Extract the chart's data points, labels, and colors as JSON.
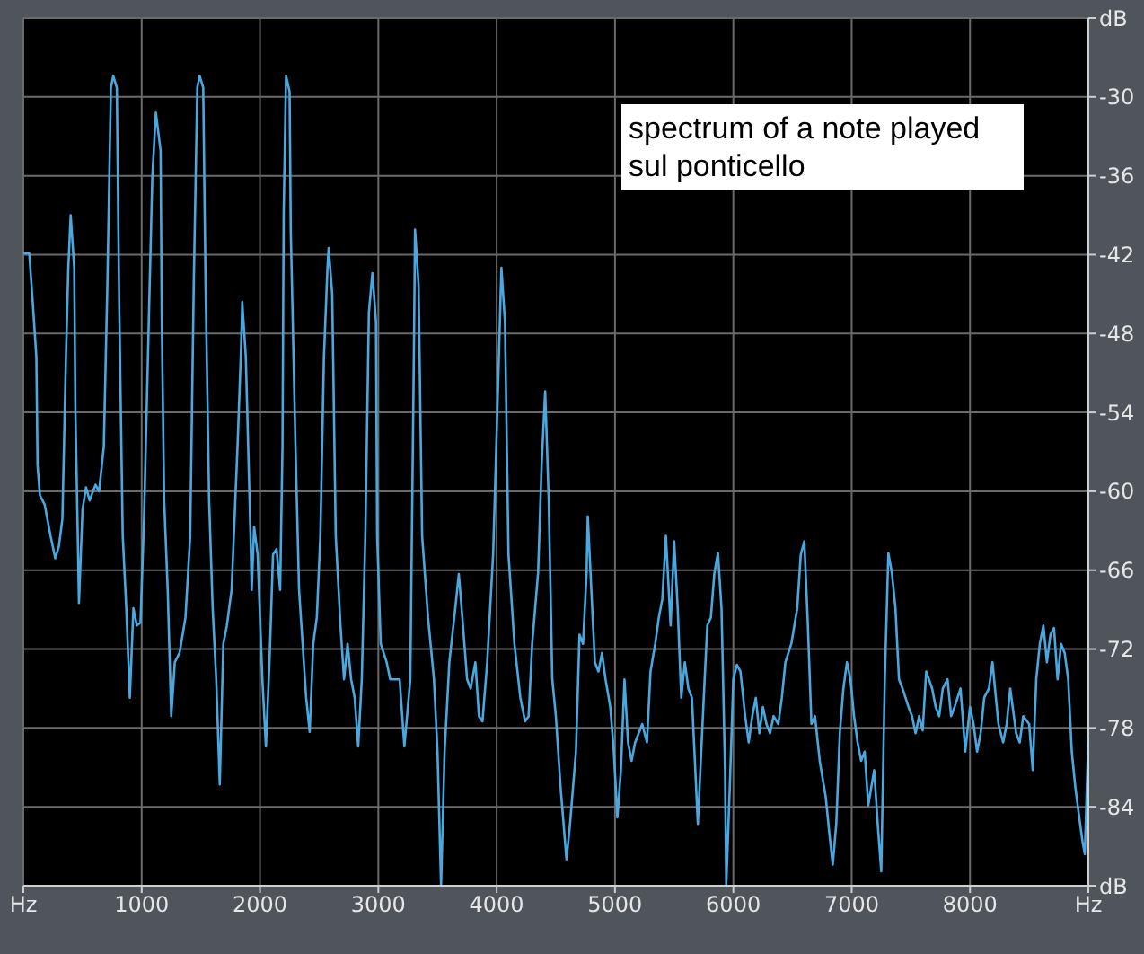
{
  "chart_data": {
    "type": "line",
    "annotations": [
      "spectrum of a note played sul ponticello"
    ],
    "xlim": [
      0,
      9000
    ],
    "xticks": [
      {
        "value": 0,
        "label": "Hz"
      },
      1000,
      2000,
      3000,
      4000,
      5000,
      6000,
      7000,
      8000,
      {
        "value": 9000,
        "label": "Hz"
      }
    ],
    "ylim": [
      -90,
      -24
    ],
    "yticks": [
      {
        "value": -90,
        "label": "dB"
      },
      -84,
      -78,
      -72,
      -66,
      -60,
      -54,
      -48,
      -42,
      -36,
      -30,
      {
        "value": -24,
        "label": "dB"
      }
    ],
    "grid": true,
    "x": [
      0,
      50,
      80,
      110,
      120,
      140,
      180,
      230,
      270,
      300,
      330,
      360,
      380,
      400,
      430,
      440,
      460,
      470,
      500,
      530,
      560,
      610,
      640,
      680,
      710,
      740,
      760,
      790,
      810,
      840,
      870,
      900,
      930,
      960,
      990,
      1020,
      1060,
      1090,
      1120,
      1160,
      1170,
      1190,
      1220,
      1250,
      1280,
      1320,
      1370,
      1410,
      1440,
      1470,
      1490,
      1520,
      1540,
      1570,
      1600,
      1630,
      1660,
      1690,
      1720,
      1760,
      1810,
      1840,
      1850,
      1880,
      1920,
      1930,
      1950,
      1980,
      2020,
      2050,
      2080,
      2110,
      2140,
      2170,
      2190,
      2200,
      2220,
      2250,
      2260,
      2300,
      2330,
      2360,
      2390,
      2420,
      2450,
      2480,
      2510,
      2540,
      2570,
      2580,
      2610,
      2640,
      2680,
      2710,
      2740,
      2770,
      2800,
      2830,
      2860,
      2890,
      2920,
      2950,
      2980,
      2990,
      3020,
      3070,
      3100,
      3130,
      3180,
      3220,
      3270,
      3300,
      3310,
      3340,
      3370,
      3420,
      3470,
      3500,
      3530,
      3560,
      3600,
      3650,
      3680,
      3710,
      3750,
      3780,
      3820,
      3850,
      3880,
      3920,
      3970,
      4010,
      4040,
      4070,
      4100,
      4150,
      4200,
      4240,
      4270,
      4300,
      4350,
      4380,
      4410,
      4440,
      4470,
      4500,
      4540,
      4590,
      4620,
      4670,
      4700,
      4730,
      4760,
      4770,
      4800,
      4830,
      4860,
      4890,
      4920,
      4960,
      4990,
      5020,
      5050,
      5080,
      5110,
      5140,
      5170,
      5200,
      5230,
      5270,
      5300,
      5340,
      5370,
      5400,
      5430,
      5470,
      5500,
      5530,
      5560,
      5590,
      5620,
      5650,
      5700,
      5750,
      5780,
      5810,
      5840,
      5870,
      5900,
      5930,
      5940,
      5970,
      6000,
      6030,
      6060,
      6100,
      6130,
      6160,
      6190,
      6220,
      6250,
      6280,
      6310,
      6340,
      6380,
      6410,
      6440,
      6490,
      6540,
      6570,
      6600,
      6630,
      6660,
      6690,
      6730,
      6780,
      6810,
      6840,
      6870,
      6900,
      6930,
      6960,
      6990,
      7020,
      7050,
      7080,
      7110,
      7140,
      7190,
      7220,
      7250,
      7280,
      7310,
      7340,
      7370,
      7400,
      7430,
      7480,
      7510,
      7540,
      7570,
      7600,
      7630,
      7680,
      7710,
      7740,
      7770,
      7810,
      7840,
      7870,
      7920,
      7960,
      8000,
      8030,
      8060,
      8090,
      8120,
      8160,
      8190,
      8240,
      8280,
      8310,
      8340,
      8390,
      8420,
      8450,
      8500,
      8530,
      8560,
      8590,
      8620,
      8650,
      8680,
      8710,
      8740,
      8770,
      8800,
      8830,
      8860,
      8890,
      8920,
      8950,
      8970,
      9000
    ],
    "series": [
      {
        "color": "#4aa8e0",
        "values": [
          -41.9,
          -41.9,
          -45.7,
          -49.8,
          -58.0,
          -60.3,
          -61.0,
          -63.4,
          -65.1,
          -64.2,
          -62.1,
          -49.8,
          -43.0,
          -39.0,
          -43.0,
          -53.9,
          -63.4,
          -68.5,
          -61.4,
          -59.7,
          -60.7,
          -59.5,
          -60.0,
          -56.6,
          -44.3,
          -29.3,
          -28.4,
          -29.3,
          -45.7,
          -63.4,
          -68.9,
          -75.7,
          -68.9,
          -70.2,
          -70.0,
          -62.1,
          -47.1,
          -36.1,
          -31.2,
          -34.1,
          -47.1,
          -60.7,
          -67.5,
          -77.1,
          -73.0,
          -72.3,
          -69.6,
          -63.4,
          -44.3,
          -29.3,
          -28.4,
          -29.3,
          -44.3,
          -60.7,
          -68.9,
          -74.3,
          -82.3,
          -71.6,
          -70.2,
          -67.5,
          -56.6,
          -49.1,
          -45.6,
          -49.8,
          -63.4,
          -67.5,
          -62.7,
          -64.8,
          -74.3,
          -79.4,
          -73.0,
          -64.8,
          -64.4,
          -67.5,
          -56.6,
          -38.9,
          -28.4,
          -29.6,
          -40.2,
          -56.6,
          -67.5,
          -71.6,
          -75.7,
          -78.3,
          -71.6,
          -69.6,
          -63.4,
          -49.8,
          -43.0,
          -41.5,
          -45.0,
          -63.4,
          -70.2,
          -74.3,
          -71.6,
          -74.3,
          -75.7,
          -79.4,
          -74.3,
          -63.4,
          -46.4,
          -43.4,
          -47.1,
          -63.4,
          -71.6,
          -73.0,
          -74.3,
          -74.3,
          -74.3,
          -79.4,
          -74.3,
          -49.8,
          -40.1,
          -44.3,
          -63.4,
          -69.6,
          -74.3,
          -79.8,
          -90,
          -79.8,
          -73.0,
          -68.9,
          -66.3,
          -69.6,
          -74.3,
          -75.0,
          -73.0,
          -77.1,
          -77.5,
          -73.0,
          -64.8,
          -52.5,
          -43.0,
          -47.1,
          -64.8,
          -71.6,
          -75.7,
          -77.5,
          -77.1,
          -71.6,
          -66.2,
          -58.0,
          -52.4,
          -60.7,
          -74.3,
          -77.1,
          -82.5,
          -88.0,
          -85.3,
          -79.8,
          -70.9,
          -71.6,
          -66.2,
          -61.9,
          -67.5,
          -73.0,
          -73.7,
          -72.3,
          -74.3,
          -76.4,
          -79.8,
          -84.8,
          -81.2,
          -74.3,
          -79.1,
          -80.5,
          -79.1,
          -78.4,
          -77.7,
          -79.1,
          -73.7,
          -71.6,
          -69.6,
          -68.2,
          -63.4,
          -70.2,
          -63.8,
          -68.9,
          -75.7,
          -73.0,
          -75.0,
          -75.7,
          -85.3,
          -75.7,
          -70.2,
          -69.6,
          -66.2,
          -64.7,
          -68.9,
          -81.2,
          -90,
          -82.5,
          -74.3,
          -73.2,
          -73.7,
          -77.1,
          -79.1,
          -77.1,
          -75.7,
          -78.4,
          -76.4,
          -77.7,
          -78.4,
          -77.1,
          -77.7,
          -75.7,
          -73.0,
          -71.6,
          -68.9,
          -64.8,
          -63.8,
          -70.2,
          -77.7,
          -77.1,
          -80.5,
          -83.2,
          -85.9,
          -88.4,
          -85.3,
          -78.4,
          -75.0,
          -73.0,
          -74.3,
          -77.1,
          -79.1,
          -80.5,
          -79.8,
          -83.9,
          -81.2,
          -85.3,
          -88.9,
          -74.3,
          -64.7,
          -66.2,
          -68.9,
          -74.3,
          -75.0,
          -76.4,
          -77.1,
          -78.4,
          -77.1,
          -78.2,
          -73.7,
          -75.0,
          -76.4,
          -77.1,
          -75.0,
          -74.3,
          -77.1,
          -76.4,
          -75.0,
          -79.8,
          -76.4,
          -77.7,
          -79.8,
          -78.4,
          -75.7,
          -75.0,
          -73.0,
          -77.7,
          -79.1,
          -77.7,
          -75.0,
          -78.4,
          -79.1,
          -77.1,
          -77.7,
          -81.2,
          -74.3,
          -71.6,
          -70.2,
          -73.0,
          -70.9,
          -70.4,
          -74.3,
          -71.6,
          -72.3,
          -74.3,
          -79.8,
          -82.5,
          -84.6,
          -86.6,
          -87.6,
          -78.8
        ]
      }
    ]
  }
}
